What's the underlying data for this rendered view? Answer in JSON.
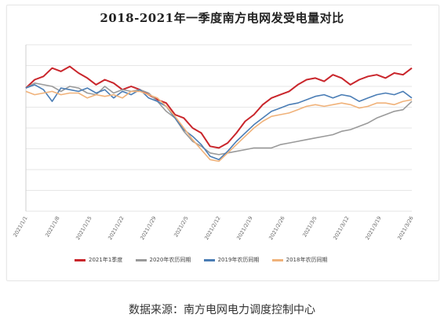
{
  "chart_data": {
    "type": "line",
    "title": "2018-2021年一季度南方电网发受电量对比",
    "xlabel": "",
    "ylabel": "",
    "x_tick_labels": [
      "2021/1/1",
      "2021/1/8",
      "2021/1/15",
      "2021/1/22",
      "2021/1/29",
      "2021/2/5",
      "2021/2/12",
      "2021/2/19",
      "2021/2/26",
      "2021/3/5",
      "2021/3/12",
      "2021/3/19",
      "2021/3/26"
    ],
    "ylim": [
      0,
      100
    ],
    "grid": true,
    "legend_position": "bottom",
    "series": [
      {
        "name": "2021年1季度",
        "color": "#c9252b",
        "values": [
          74,
          79,
          81,
          86,
          84,
          87,
          83,
          80,
          76,
          79,
          77,
          73,
          75,
          73,
          70,
          67,
          65,
          58,
          56,
          50,
          47,
          39,
          38,
          41,
          47,
          54,
          58,
          64,
          68,
          70,
          72,
          76,
          79,
          80,
          78,
          82,
          80,
          76,
          79,
          81,
          82,
          80,
          83,
          82,
          86
        ]
      },
      {
        "name": "2020年农历同期",
        "color": "#9a9a9a",
        "values": [
          74,
          77,
          76,
          75,
          72,
          75,
          74,
          71,
          70,
          75,
          71,
          73,
          72,
          73,
          71,
          66,
          60,
          56,
          48,
          42,
          39,
          35,
          34,
          35,
          36,
          37,
          38,
          38,
          38,
          40,
          41,
          42,
          43,
          44,
          45,
          46,
          48,
          49,
          51,
          53,
          56,
          58,
          60,
          61,
          66
        ]
      },
      {
        "name": "2019年农历同期",
        "color": "#4a7db5",
        "values": [
          74,
          76,
          73,
          66,
          74,
          73,
          72,
          74,
          71,
          73,
          68,
          72,
          70,
          73,
          68,
          66,
          63,
          56,
          49,
          45,
          40,
          33,
          31,
          36,
          42,
          47,
          52,
          56,
          60,
          62,
          64,
          65,
          67,
          69,
          70,
          68,
          70,
          69,
          66,
          68,
          70,
          71,
          70,
          72,
          68
        ]
      },
      {
        "name": "2018年农历同期",
        "color": "#f0b27a",
        "values": [
          72,
          70,
          71,
          72,
          70,
          71,
          71,
          68,
          70,
          69,
          70,
          68,
          72,
          72,
          70,
          68,
          63,
          57,
          50,
          43,
          37,
          31,
          30,
          35,
          40,
          45,
          50,
          54,
          57,
          58,
          59,
          61,
          63,
          64,
          63,
          64,
          65,
          64,
          62,
          63,
          65,
          65,
          64,
          66,
          67
        ]
      }
    ]
  },
  "caption": "数据来源：南方电网电力调度控制中心"
}
